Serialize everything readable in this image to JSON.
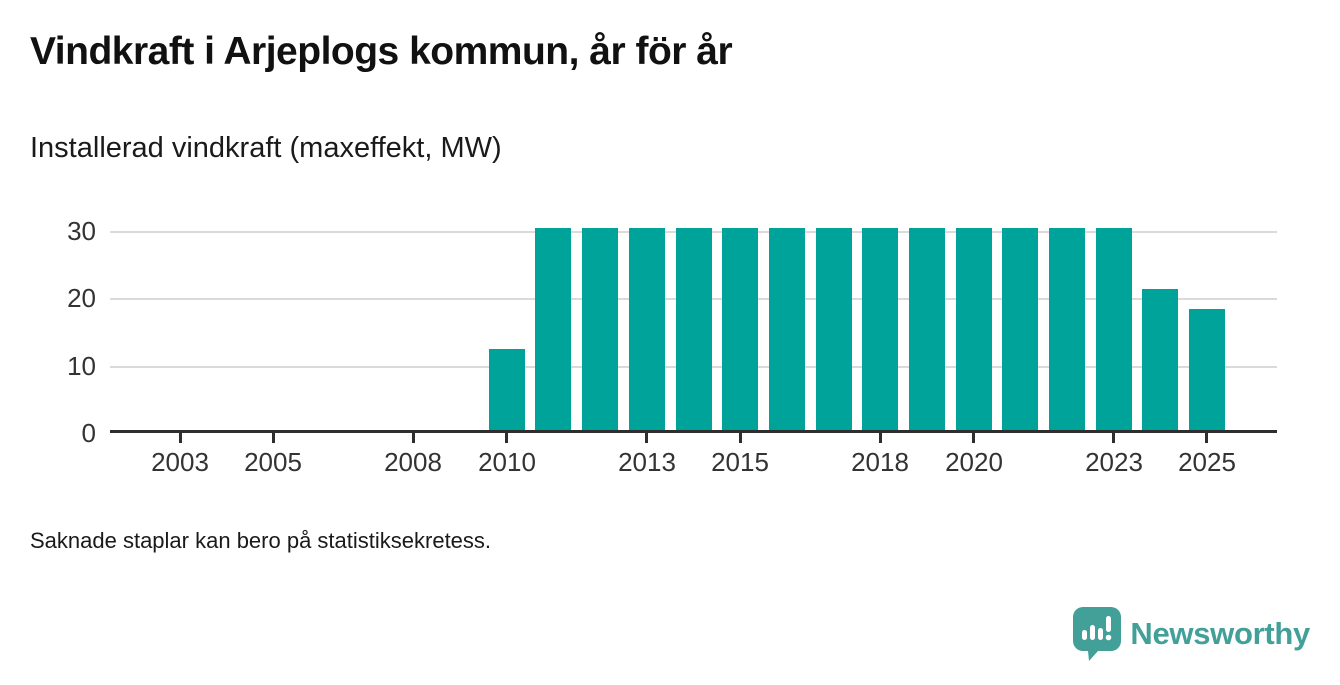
{
  "chart_data": {
    "type": "bar",
    "title": "Vindkraft i Arjeplogs kommun, år för år",
    "subtitle": "Installerad vindkraft (maxeffekt, MW)",
    "unit": "MW",
    "x": [
      2010,
      2011,
      2012,
      2013,
      2014,
      2015,
      2016,
      2017,
      2018,
      2019,
      2020,
      2021,
      2022,
      2023,
      2024,
      2025
    ],
    "values": [
      12,
      30,
      30,
      30,
      30,
      30,
      30,
      30,
      30,
      30,
      30,
      30,
      30,
      30,
      21,
      18
    ],
    "x_tick_years": [
      2003,
      2005,
      2008,
      2010,
      2013,
      2015,
      2018,
      2020,
      2023,
      2025
    ],
    "y_ticks": [
      0,
      10,
      20,
      30
    ],
    "ylim": [
      0,
      30
    ],
    "x_domain": [
      2002,
      2026
    ],
    "grid": "horizontal",
    "legend": "none",
    "bar_color": "#00a39a",
    "gridline_color": "#dadada",
    "axis_color": "#2e2e2e"
  },
  "footer": {
    "note": "Saknade staplar kan bero på statistiksekretess.",
    "brand": "Newsworthy",
    "brand_color": "#42a099"
  }
}
